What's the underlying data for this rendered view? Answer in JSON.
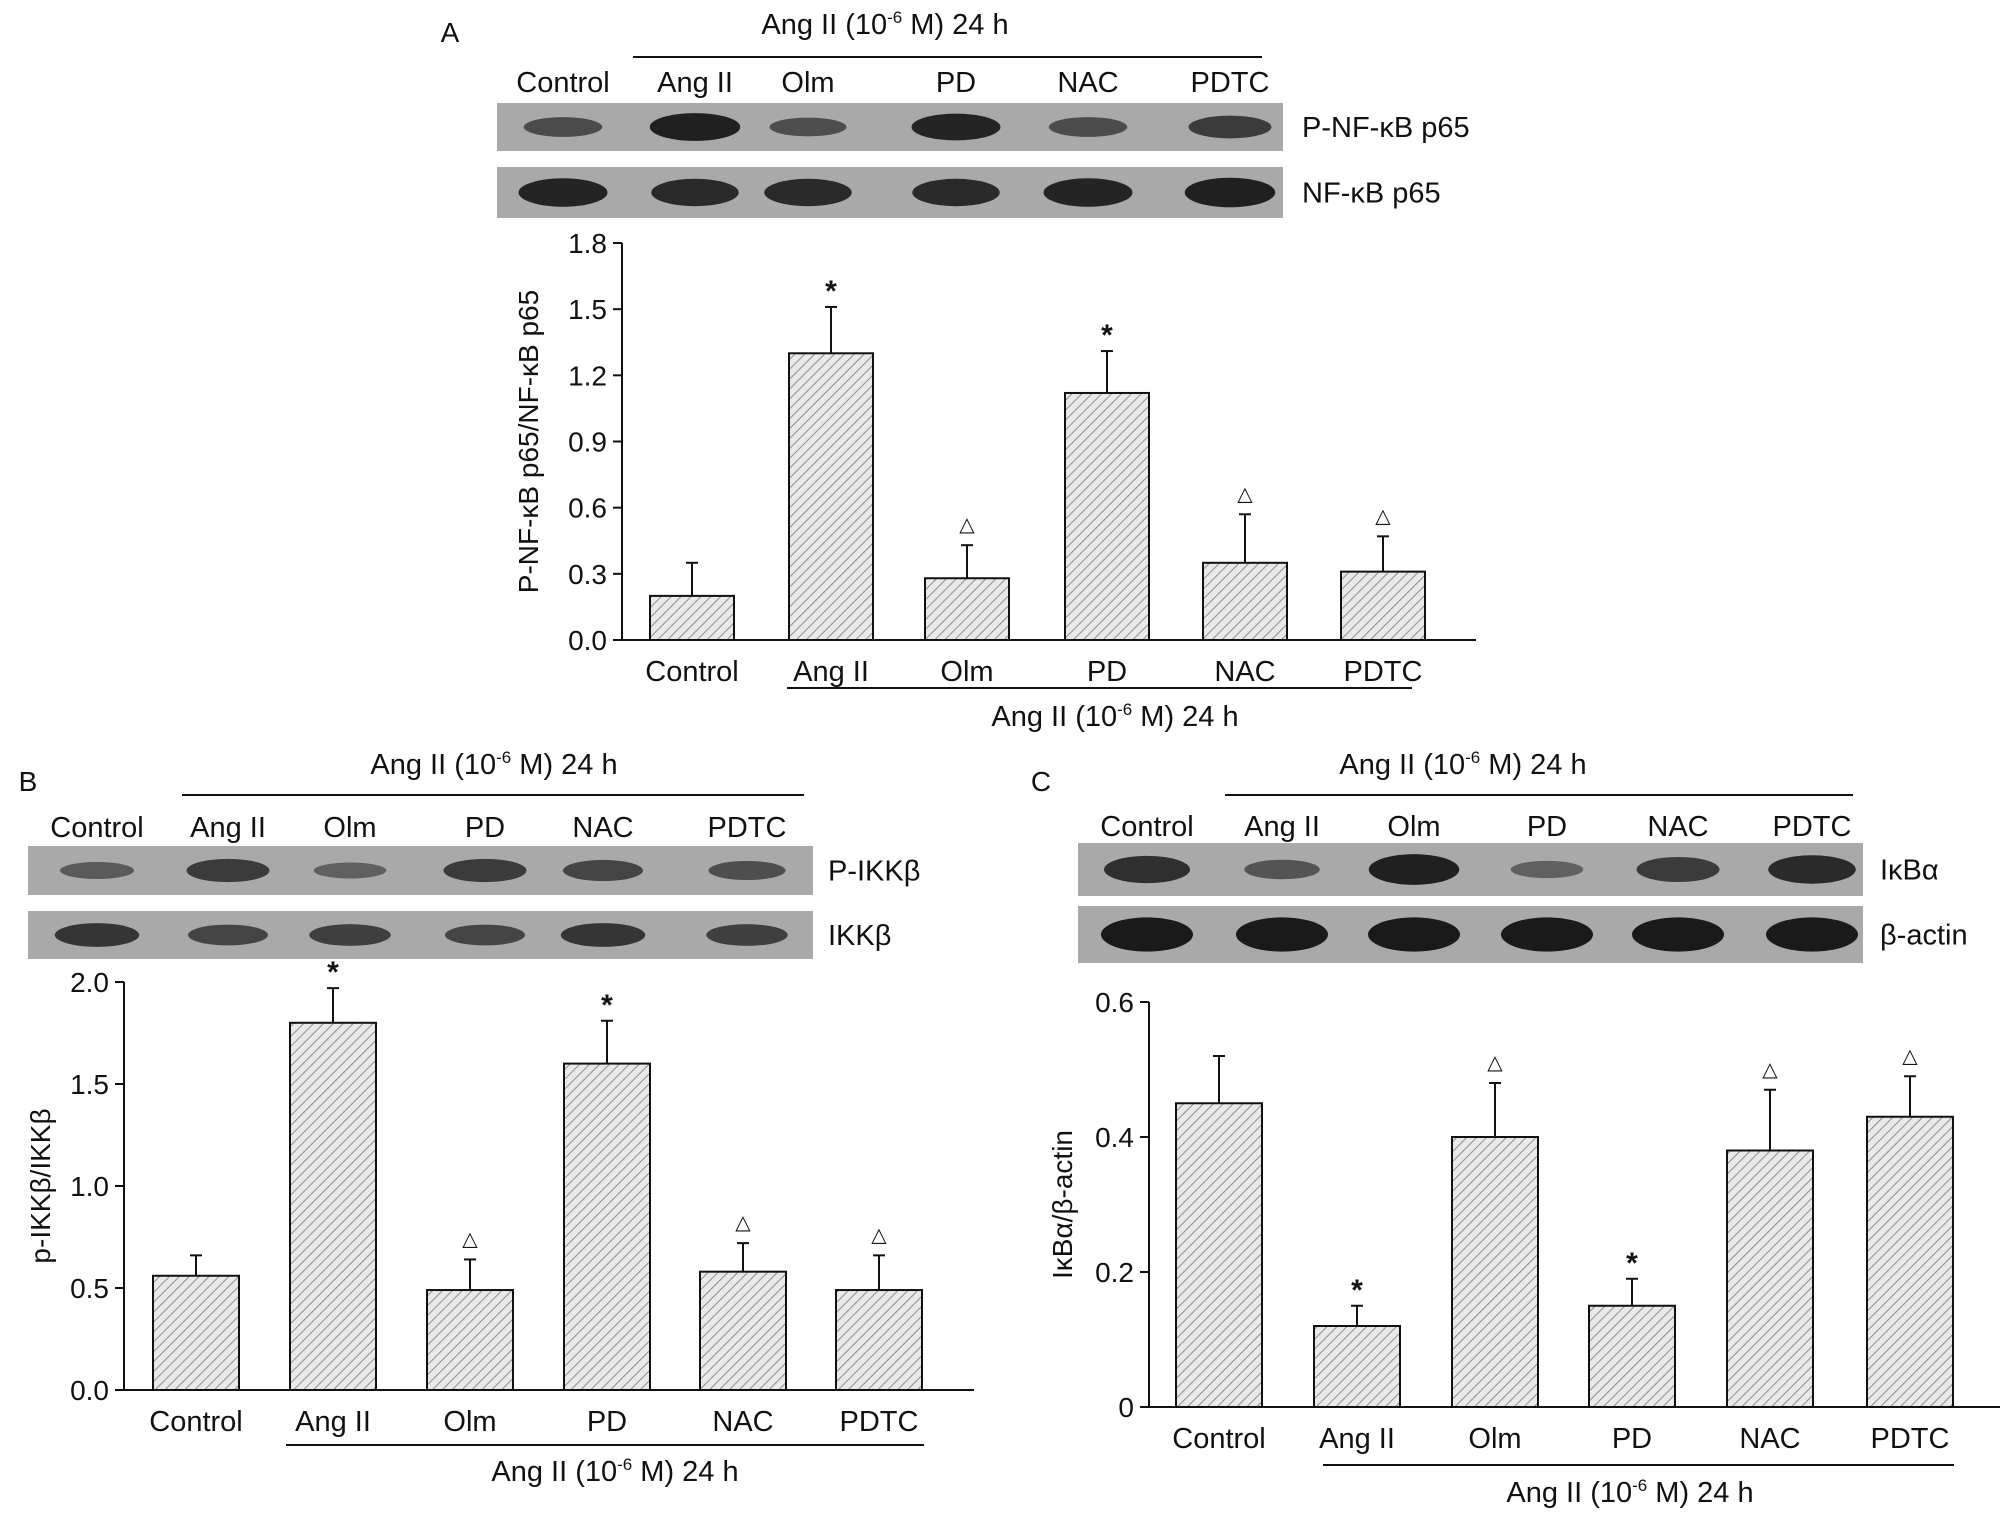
{
  "ang_ii_caption": {
    "pre": "Ang II (10",
    "sup": "-6",
    "post": " M) 24 h"
  },
  "chart_data": [
    {
      "panel": "A",
      "type": "bar",
      "categories": [
        "Control",
        "Ang II",
        "Olm",
        "PD",
        "NAC",
        "PDTC"
      ],
      "values": [
        0.2,
        1.3,
        0.28,
        1.12,
        0.35,
        0.31
      ],
      "errors": [
        0.15,
        0.21,
        0.15,
        0.19,
        0.22,
        0.16
      ],
      "significance": [
        "",
        "*",
        "△",
        "*",
        "△",
        "△"
      ],
      "ylabel": "P-NF-κB p65/NF-κB p65",
      "yticks": [
        "0.0",
        "0.3",
        "0.6",
        "0.9",
        "1.2",
        "1.5",
        "1.8"
      ],
      "ylim": [
        0,
        1.8
      ],
      "blot_labels": [
        "P-NF-κB p65",
        "NF-κB p65"
      ],
      "blot_lane_labels": [
        "Control",
        "Ang II",
        "Olm",
        "PD",
        "NAC",
        "PDTC"
      ],
      "bar_fill": "#e9e9e9",
      "hatch_color": "#777777"
    },
    {
      "panel": "B",
      "type": "bar",
      "categories": [
        "Control",
        "Ang II",
        "Olm",
        "PD",
        "NAC",
        "PDTC"
      ],
      "values": [
        0.56,
        1.8,
        0.49,
        1.6,
        0.58,
        0.49
      ],
      "errors": [
        0.1,
        0.17,
        0.15,
        0.21,
        0.14,
        0.17
      ],
      "significance": [
        "",
        "*",
        "△",
        "*",
        "△",
        "△"
      ],
      "ylabel": "p-IKKβ/IKKβ",
      "yticks": [
        "0.0",
        "0.5",
        "1.0",
        "1.5",
        "2.0"
      ],
      "ylim": [
        0,
        2.0
      ],
      "blot_labels": [
        "P-IKKβ",
        "IKKβ"
      ],
      "blot_lane_labels": [
        "Control",
        "Ang II",
        "Olm",
        "PD",
        "NAC",
        "PDTC"
      ],
      "bar_fill": "#e9e9e9",
      "hatch_color": "#777777"
    },
    {
      "panel": "C",
      "type": "bar",
      "categories": [
        "Control",
        "Ang II",
        "Olm",
        "PD",
        "NAC",
        "PDTC"
      ],
      "values": [
        0.45,
        0.12,
        0.4,
        0.15,
        0.38,
        0.43
      ],
      "errors": [
        0.07,
        0.03,
        0.08,
        0.04,
        0.09,
        0.06
      ],
      "significance": [
        "",
        "*",
        "△",
        "*",
        "△",
        "△"
      ],
      "ylabel": "IκBα/β-actin",
      "yticks": [
        "0",
        "0.2",
        "0.4",
        "0.6"
      ],
      "ylim": [
        0,
        0.6
      ],
      "blot_labels": [
        "IκBα",
        "β-actin"
      ],
      "blot_lane_labels": [
        "Control",
        "Ang II",
        "Olm",
        "PD",
        "NAC",
        "PDTC"
      ],
      "bar_fill": "#e9e9e9",
      "hatch_color": "#777777"
    }
  ],
  "blot_colors": {
    "background": "#a9a9a9",
    "band": "#1a1a1a"
  },
  "blot_intensity": [
    {
      "rows": [
        [
          0.55,
          0.95,
          0.5,
          0.9,
          0.55,
          0.7
        ],
        [
          0.9,
          0.85,
          0.85,
          0.85,
          0.9,
          0.95
        ]
      ]
    },
    {
      "rows": [
        [
          0.4,
          0.7,
          0.35,
          0.7,
          0.6,
          0.5
        ],
        [
          0.75,
          0.6,
          0.65,
          0.6,
          0.75,
          0.65
        ]
      ]
    },
    {
      "rows": [
        [
          0.8,
          0.45,
          0.95,
          0.35,
          0.7,
          0.85
        ],
        [
          1.0,
          1.0,
          1.0,
          1.0,
          1.0,
          1.0
        ]
      ]
    }
  ]
}
